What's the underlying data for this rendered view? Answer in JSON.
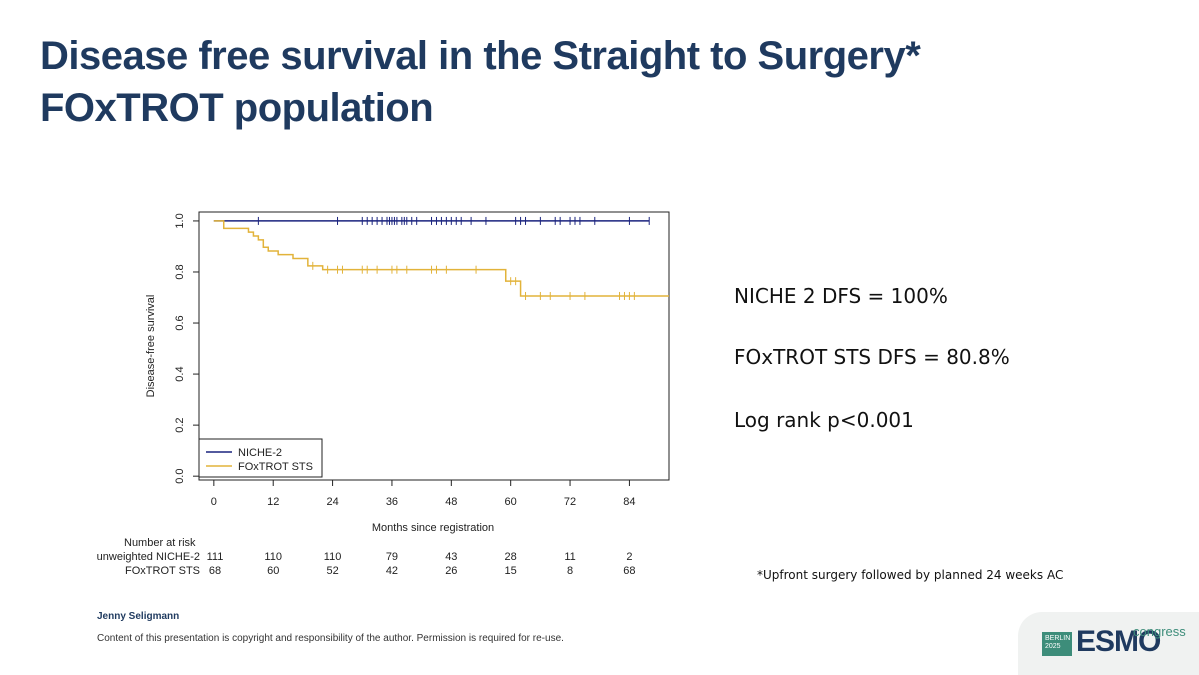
{
  "slide": {
    "title_lines": [
      "Disease free survival in the Straight to Surgery*",
      "FOxTROT population"
    ],
    "stats": [
      "NICHE 2 DFS = 100%",
      "FOxTROT STS DFS =  80.8%",
      "Log rank p<0.001"
    ],
    "footnote": "*Upfront surgery followed by planned 24 weeks  AC",
    "author": "Jenny Seligmann",
    "copyright": "Content of this presentation is copyright and responsibility of the author. Permission is required for re-use.",
    "logo": {
      "badge_line1": "BERLIN",
      "badge_line2": "2025",
      "brand": "ESMO",
      "suffix": "congress"
    }
  },
  "chart_data": {
    "type": "line",
    "subtype": "kaplan-meier",
    "xlabel": "Months since registration",
    "ylabel": "Disease-free survival",
    "xlim": [
      -3,
      92
    ],
    "ylim": [
      -0.015,
      1.035
    ],
    "x_ticks": [
      0,
      12,
      24,
      36,
      48,
      60,
      72,
      84
    ],
    "y_ticks": [
      0.0,
      0.2,
      0.4,
      0.6,
      0.8,
      1.0
    ],
    "y_tick_labels": [
      "0.0",
      "0.2",
      "0.4",
      "0.6",
      "0.8",
      "1.0"
    ],
    "legend_position": "bottom-left",
    "series": [
      {
        "name": "NICHE-2",
        "color": "#1a237e",
        "steps": [
          [
            0,
            1.0
          ],
          [
            88,
            1.0
          ]
        ],
        "censor_times": [
          9,
          25,
          30,
          31,
          32,
          33,
          34,
          35,
          35.5,
          36,
          36.5,
          37,
          38,
          38.5,
          39,
          40,
          41,
          44,
          45,
          46,
          47,
          48,
          49,
          50,
          52,
          55,
          61,
          62,
          63,
          66,
          69,
          70,
          72,
          73,
          74,
          77,
          84,
          88
        ]
      },
      {
        "name": "FOxTROT STS",
        "color": "#e2b33a",
        "steps": [
          [
            0,
            1.0
          ],
          [
            2,
            0.971
          ],
          [
            7,
            0.956
          ],
          [
            8,
            0.941
          ],
          [
            9,
            0.926
          ],
          [
            10,
            0.897
          ],
          [
            11,
            0.882
          ],
          [
            13,
            0.868
          ],
          [
            16,
            0.853
          ],
          [
            19,
            0.824
          ],
          [
            22,
            0.809
          ],
          [
            59,
            0.764
          ],
          [
            62,
            0.706
          ],
          [
            92,
            0.706
          ]
        ],
        "censor_times": [
          20,
          23,
          25,
          26,
          30,
          31,
          33,
          36,
          37,
          39,
          44,
          45,
          47,
          53,
          60,
          61,
          63,
          66,
          68,
          72,
          75,
          82,
          83,
          84,
          85
        ]
      }
    ],
    "risk_table": {
      "header": "Number at risk",
      "times": [
        0,
        12,
        24,
        36,
        48,
        60,
        72,
        84
      ],
      "rows": [
        {
          "label": "unweighted NICHE-2",
          "values": [
            "111",
            "110",
            "110",
            "79",
            "43",
            "28",
            "11",
            "2"
          ]
        },
        {
          "label": "FOxTROT STS",
          "values": [
            "68",
            "60",
            "52",
            "42",
            "26",
            "15",
            "8",
            "68"
          ]
        }
      ]
    }
  }
}
